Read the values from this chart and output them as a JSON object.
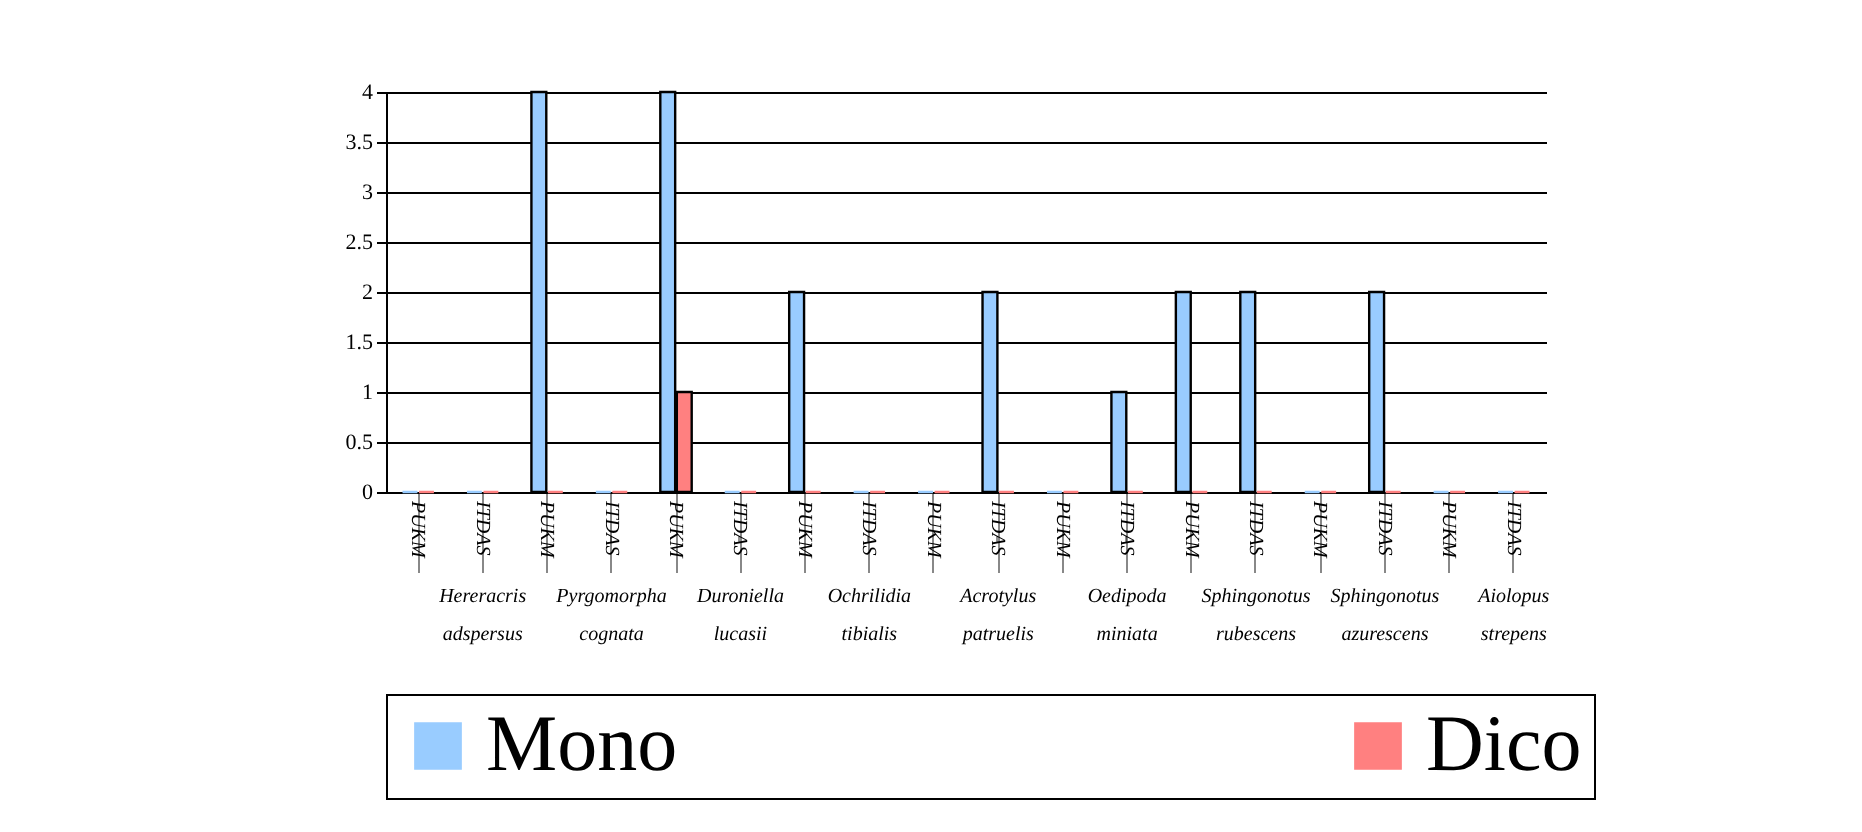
{
  "chart_data": {
    "type": "bar",
    "categories": [
      "PUKM",
      "ITDAS",
      "PUKM",
      "ITDAS",
      "PUKM",
      "ITDAS",
      "PUKM",
      "ITDAS",
      "PUKM",
      "ITDAS",
      "PUKM",
      "ITDAS",
      "PUKM",
      "ITDAS",
      "PUKM",
      "ITDAS",
      "PUKM",
      "ITDAS"
    ],
    "series": [
      {
        "name": "Mono",
        "color": "#99ccff",
        "values": [
          0,
          0,
          4,
          0,
          4,
          0,
          2,
          0,
          0,
          2,
          0,
          1,
          2,
          2,
          0,
          2,
          0,
          0
        ]
      },
      {
        "name": "Dico",
        "color": "#ff8080",
        "values": [
          0,
          0,
          0,
          0,
          1,
          0,
          0,
          0,
          0,
          0,
          0,
          0,
          0,
          0,
          0,
          0,
          0,
          0
        ]
      }
    ],
    "annotations": [
      "Hereracris adspersus",
      "Pyrgomorpha cognata",
      "Duroniella lucasii",
      "Ochrilidia tibialis",
      "Acrotylus patruelis",
      "Oedipoda miniata",
      "Sphingonotus rubescens",
      "Sphingonotus azurescens",
      "Aiolopus strepens"
    ],
    "ylim": [
      0,
      4
    ],
    "yticks": [
      0,
      0.5,
      1,
      1.5,
      2,
      2.5,
      3,
      3.5,
      4
    ],
    "grid": "y",
    "legend": "bottom"
  }
}
